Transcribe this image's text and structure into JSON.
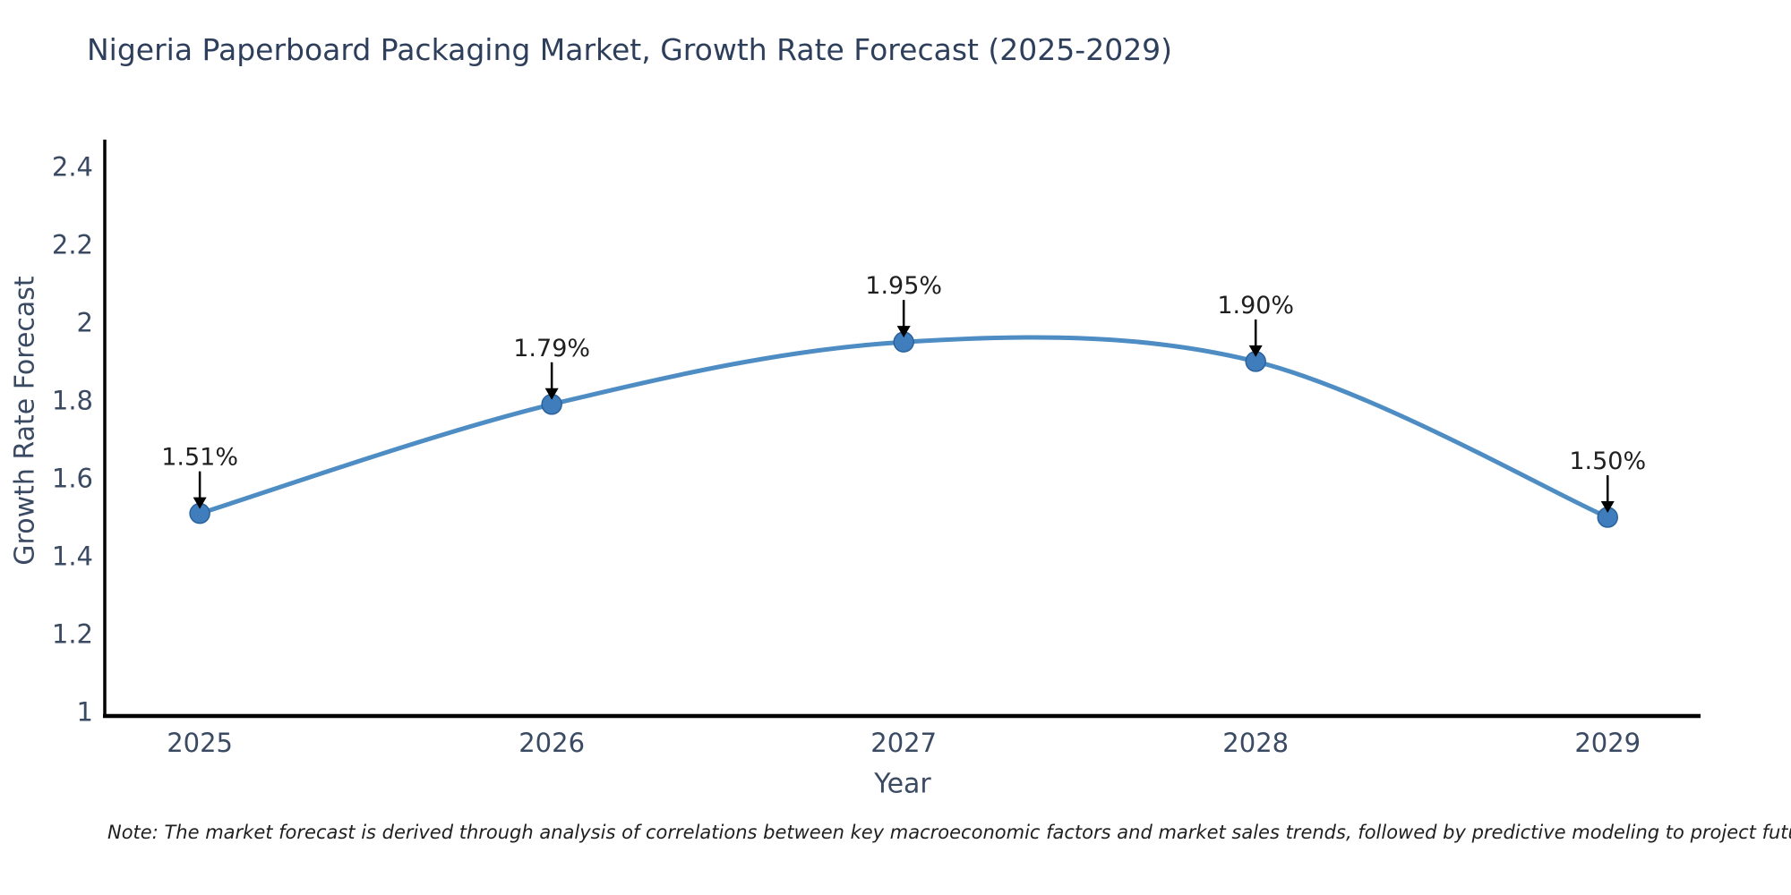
{
  "note": "Note: The market forecast is derived through analysis of correlations between key macroeconomic factors and market sales trends, followed by predictive modeling to project future sales",
  "chart_data": {
    "type": "line",
    "title": "Nigeria Paperboard Packaging Market, Growth Rate Forecast (2025-2029)",
    "x": [
      2025,
      2026,
      2027,
      2028,
      2029
    ],
    "series": [
      {
        "name": "Growth Rate Forecast",
        "values": [
          1.51,
          1.79,
          1.95,
          1.9,
          1.5
        ]
      }
    ],
    "point_labels": [
      "1.51%",
      "1.79%",
      "1.95%",
      "1.90%",
      "1.50%"
    ],
    "xlabel": "Year",
    "ylabel": "Growth Rate Forecast",
    "xtick_labels": [
      "2025",
      "2026",
      "2027",
      "2028",
      "2029"
    ],
    "yticks": [
      1,
      1.2,
      1.4,
      1.6,
      1.8,
      2,
      2.2,
      2.4
    ],
    "ytick_labels": [
      "1",
      "1.2",
      "1.4",
      "1.6",
      "1.8",
      "2",
      "2.2",
      "2.4"
    ],
    "xlim": [
      2024.73,
      2029.264
    ],
    "ylim": [
      0.99,
      2.465
    ],
    "grid": false,
    "legend": "none",
    "line_smooth": true,
    "annotation_arrows": true,
    "colors": {
      "line": "#4e8cc4",
      "marker_fill": "#3f7dbc",
      "marker_edge": "#2b629c",
      "arrow": "#000000",
      "axis": "#000000",
      "title_text": "#2e3f5c",
      "tick_text": "#3b4a63",
      "annotation_text": "#1f1f1f"
    }
  }
}
